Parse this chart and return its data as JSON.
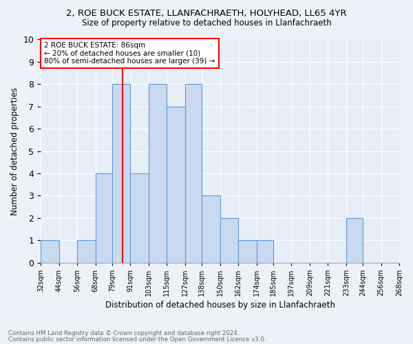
{
  "title1": "2, ROE BUCK ESTATE, LLANFACHRAETH, HOLYHEAD, LL65 4YR",
  "title2": "Size of property relative to detached houses in Llanfachraeth",
  "xlabel": "Distribution of detached houses by size in Llanfachraeth",
  "ylabel": "Number of detached properties",
  "bin_edges": [
    32,
    44,
    56,
    68,
    79,
    91,
    103,
    115,
    127,
    138,
    150,
    162,
    174,
    185,
    197,
    209,
    221,
    233,
    244,
    256,
    268
  ],
  "bin_labels": [
    "32sqm",
    "44sqm",
    "56sqm",
    "68sqm",
    "79sqm",
    "91sqm",
    "103sqm",
    "115sqm",
    "127sqm",
    "138sqm",
    "150sqm",
    "162sqm",
    "174sqm",
    "185sqm",
    "197sqm",
    "209sqm",
    "221sqm",
    "233sqm",
    "244sqm",
    "256sqm",
    "268sqm"
  ],
  "counts": [
    1,
    0,
    1,
    4,
    8,
    4,
    8,
    7,
    8,
    3,
    2,
    1,
    1,
    0,
    0,
    0,
    0,
    2,
    0,
    0
  ],
  "bar_color": "#c9d9f0",
  "bar_edge_color": "#5b9bd5",
  "vline_pos": 86,
  "vline_color": "red",
  "annotation_text": "2 ROE BUCK ESTATE: 86sqm\n← 20% of detached houses are smaller (10)\n80% of semi-detached houses are larger (39) →",
  "annotation_box_color": "white",
  "annotation_box_edge": "red",
  "ylim": [
    0,
    10
  ],
  "yticks": [
    0,
    1,
    2,
    3,
    4,
    5,
    6,
    7,
    8,
    9,
    10
  ],
  "footer1": "Contains HM Land Registry data © Crown copyright and database right 2024.",
  "footer2": "Contains public sector information licensed under the Open Government Licence v3.0.",
  "bg_color": "#eef2f8",
  "plot_bg": "#e8eef8"
}
